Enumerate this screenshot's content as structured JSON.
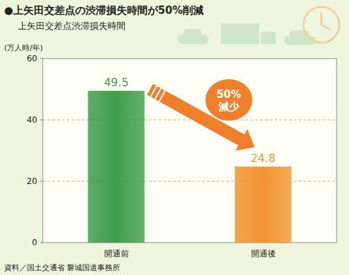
{
  "chart_data": {
    "type": "bar",
    "title": "●上矢田交差点の渋滞損失時間が50%削減",
    "subtitle": "上矢田交差点渋滞損失時間",
    "y_label": "(万人時/年)",
    "categories": [
      "開通前",
      "開通後"
    ],
    "values": [
      49.5,
      24.8
    ],
    "colors": [
      "#3f9e4d",
      "#f29433"
    ],
    "ylim": [
      0,
      60
    ],
    "yticks": [
      0,
      20,
      40,
      60
    ],
    "grid": true,
    "data_labels": true,
    "annotations": [
      "50%",
      "減少"
    ],
    "source": "資料／国土交通省 磐城国道事務所"
  }
}
